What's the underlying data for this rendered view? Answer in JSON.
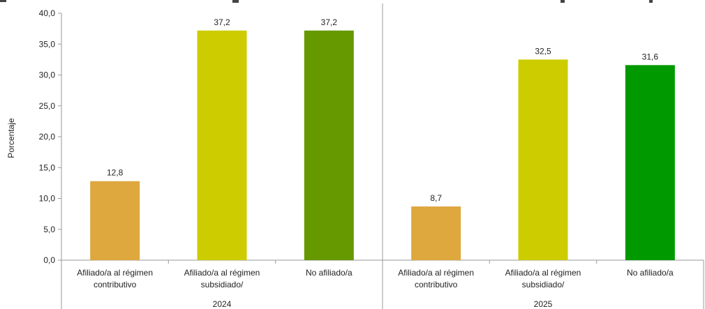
{
  "chart_data": {
    "type": "bar",
    "ylabel": "Porcentaje",
    "ylim": [
      0,
      40
    ],
    "y_ticks": [
      "0,0",
      "5,0",
      "10,0",
      "15,0",
      "20,0",
      "25,0",
      "30,0",
      "35,0",
      "40,0"
    ],
    "grid": false,
    "legend": "none",
    "groups": [
      {
        "label": "2024",
        "categories": [
          "Afiliado/a al régimen contributivo",
          "Afiliado/a al régimen subsidiado/",
          "No afiliado/a"
        ],
        "category_lines": [
          [
            "Afiliado/a al régimen",
            "contributivo"
          ],
          [
            "Afiliado/a al régimen",
            "subsidiado/"
          ],
          [
            "No afiliado/a"
          ]
        ],
        "values": [
          12.8,
          37.2,
          37.2
        ],
        "value_labels": [
          "12,8",
          "37,2",
          "37,2"
        ],
        "colors": [
          "#DEA83F",
          "#CCCC00",
          "#669900"
        ]
      },
      {
        "label": "2025",
        "categories": [
          "Afiliado/a al régimen contributivo",
          "Afiliado/a al régimen subsidiado/",
          "No afiliado/a"
        ],
        "category_lines": [
          [
            "Afiliado/a al régimen",
            "contributivo"
          ],
          [
            "Afiliado/a al régimen",
            "subsidiado/"
          ],
          [
            "No afiliado/a"
          ]
        ],
        "values": [
          8.7,
          32.5,
          31.6
        ],
        "value_labels": [
          "8,7",
          "32,5",
          "31,6"
        ],
        "colors": [
          "#DEA83F",
          "#CCCC00",
          "#009900"
        ]
      }
    ]
  }
}
